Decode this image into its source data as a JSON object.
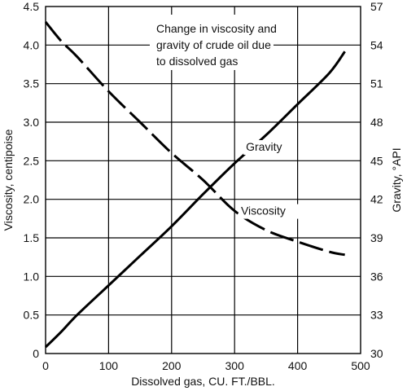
{
  "chart_data": {
    "type": "line",
    "title_lines": [
      "Change in viscosity and",
      "gravity of crude oil due",
      "to dissolved gas"
    ],
    "xlabel": "Dissolved gas, CU. FT./BBL.",
    "ylabel_left": "Viscosity, centipoise",
    "ylabel_right": "Gravity, °API",
    "xlim": [
      0,
      500
    ],
    "ylim_left": [
      0,
      4.5
    ],
    "ylim_right": [
      30,
      57
    ],
    "x_ticks": [
      "0",
      "100",
      "200",
      "300",
      "400",
      "500"
    ],
    "y_left_ticks": [
      "0",
      "0.5",
      "1.0",
      "1.5",
      "2.0",
      "2.5",
      "3.0",
      "3.5",
      "4.0",
      "4.5"
    ],
    "y_right_ticks": [
      "30",
      "33",
      "36",
      "39",
      "42",
      "45",
      "48",
      "51",
      "54",
      "57"
    ],
    "grid": true,
    "series": [
      {
        "name": "Gravity",
        "axis": "right",
        "style": "solid",
        "x": [
          0,
          25,
          50,
          100,
          150,
          200,
          250,
          300,
          350,
          400,
          450,
          475
        ],
        "y": [
          30.5,
          31.7,
          33.0,
          35.3,
          37.6,
          39.9,
          42.4,
          44.8,
          47.0,
          49.4,
          51.8,
          53.5
        ]
      },
      {
        "name": "Viscosity",
        "axis": "left",
        "style": "dashed",
        "x": [
          0,
          25,
          50,
          100,
          150,
          200,
          250,
          300,
          350,
          400,
          450,
          475
        ],
        "y": [
          4.3,
          4.05,
          3.85,
          3.4,
          3.0,
          2.6,
          2.25,
          1.85,
          1.6,
          1.45,
          1.32,
          1.28
        ]
      }
    ],
    "annotations": [
      {
        "text": "Gravity",
        "x": 318,
        "y": 2.63
      },
      {
        "text": "Viscosity",
        "x": 310,
        "y": 1.8
      }
    ]
  }
}
